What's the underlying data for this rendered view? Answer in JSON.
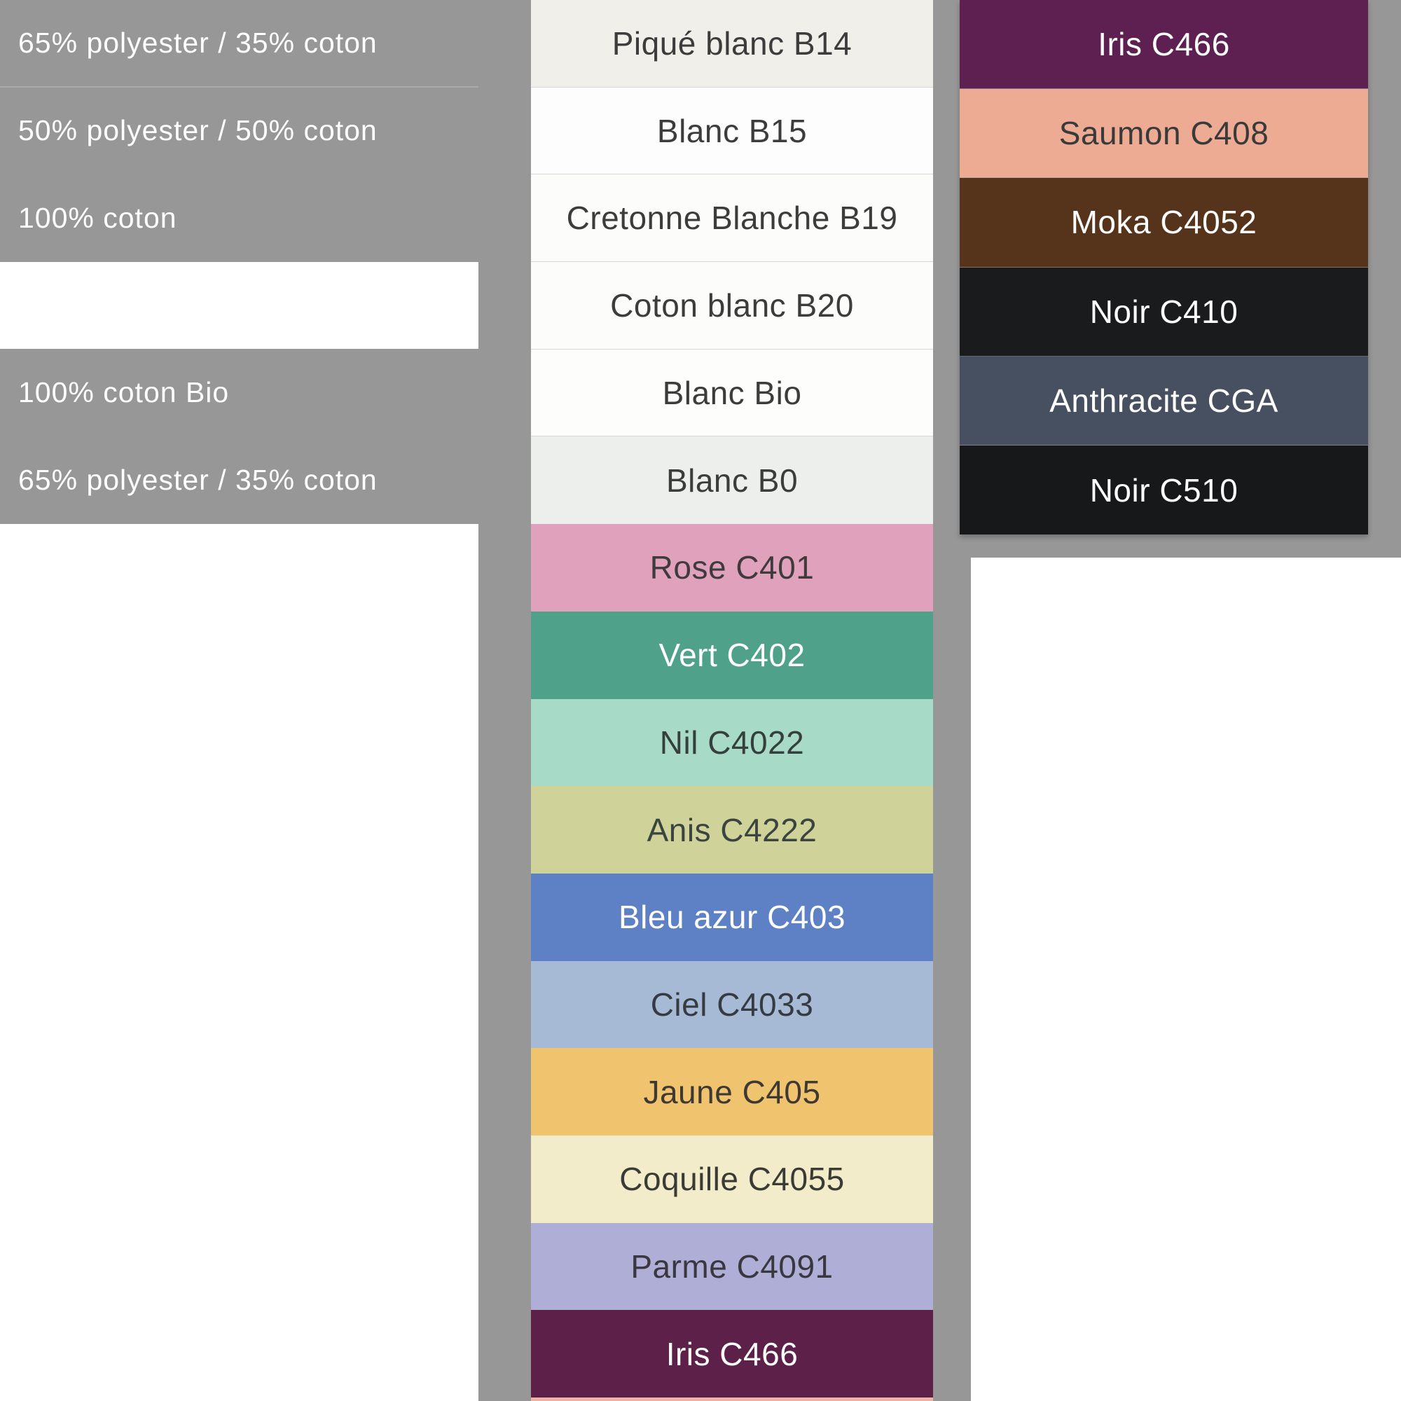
{
  "page": {
    "background_color": "#979797",
    "white_color": "#ffffff",
    "divider_color": "#ababab"
  },
  "left_panel": {
    "text_color": "#ffffff",
    "rows": [
      {
        "text": "65% polyester / 35% coton"
      },
      {
        "text": "50% polyester / 50% coton"
      },
      {
        "text": "100% coton"
      },
      {
        "text": ""
      },
      {
        "text": "100% coton Bio"
      },
      {
        "text": "65% polyester / 35% coton"
      }
    ]
  },
  "middle_column": {
    "swatches": [
      {
        "label": "Piqué blanc B14",
        "color": "#f0efea",
        "text_color": "#3c3c3c",
        "texture": "pique",
        "sep": true
      },
      {
        "label": "Blanc B15",
        "color": "#fdfdfd",
        "text_color": "#3c3c3c",
        "sep": true
      },
      {
        "label": "Cretonne Blanche B19",
        "color": "#fcfcfb",
        "text_color": "#3c3c3c",
        "sep": true
      },
      {
        "label": "Coton blanc B20",
        "color": "#fcfcfb",
        "text_color": "#3c3c3c",
        "sep": true
      },
      {
        "label": "Blanc Bio",
        "color": "#fdfdfc",
        "text_color": "#3c3c3c",
        "sep": true
      },
      {
        "label": "Blanc B0",
        "color": "#edefec",
        "text_color": "#3c3c3c"
      },
      {
        "label": "Rose C401",
        "color": "#e0a1bc",
        "text_color": "#3f3a3c",
        "texture": "knit"
      },
      {
        "label": "Vert C402",
        "color": "#4fa18a",
        "text_color": "#ffffff"
      },
      {
        "label": "Nil C4022",
        "color": "#a7dbc8",
        "text_color": "#353f3d"
      },
      {
        "label": "Anis C4222",
        "color": "#cfd399",
        "text_color": "#3c4440"
      },
      {
        "label": "Bleu azur C403",
        "color": "#5e81c5",
        "text_color": "#ffffff"
      },
      {
        "label": "Ciel C4033",
        "color": "#a6bad6",
        "text_color": "#363b42"
      },
      {
        "label": "Jaune C405",
        "color": "#f0c36e",
        "text_color": "#3e3a33",
        "texture": "twill"
      },
      {
        "label": "Coquille C4055",
        "color": "#f3ecca",
        "text_color": "#3b3b35"
      },
      {
        "label": "Parme C4091",
        "color": "#aeaed6",
        "text_color": "#39383f"
      },
      {
        "label": "Iris C466",
        "color": "#5d2049",
        "text_color": "#ffffff"
      },
      {
        "label": "",
        "color": "#edb4a3",
        "height": 5
      }
    ]
  },
  "right_column": {
    "swatches": [
      {
        "label": "Iris C466",
        "color": "#5d2050",
        "text_color": "#ffffff"
      },
      {
        "label": "Saumon C408",
        "color": "#ecab92",
        "text_color": "#3a3a3a",
        "texture": "twill"
      },
      {
        "label": "Moka C4052",
        "color": "#56341b",
        "text_color": "#ffffff"
      },
      {
        "label": "Noir C410",
        "color": "#1a1b1d",
        "text_color": "#ffffff"
      },
      {
        "label": "Anthracite CGA",
        "color": "#475060",
        "text_color": "#ffffff"
      },
      {
        "label": "Noir C510",
        "color": "#17181a",
        "text_color": "#ffffff"
      }
    ]
  }
}
